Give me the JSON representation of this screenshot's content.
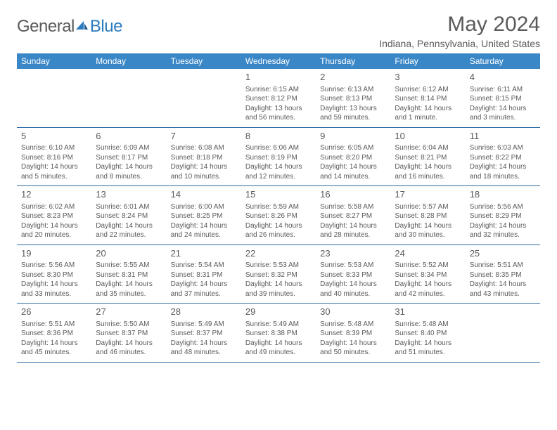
{
  "brand": {
    "general": "General",
    "blue": "Blue"
  },
  "title": "May 2024",
  "location": "Indiana, Pennsylvania, United States",
  "colors": {
    "header_bg": "#3a87c8",
    "border": "#2b6ba3",
    "text": "#5a5a5a",
    "brand_blue": "#2b7bbf",
    "background": "#ffffff"
  },
  "dayNames": [
    "Sunday",
    "Monday",
    "Tuesday",
    "Wednesday",
    "Thursday",
    "Friday",
    "Saturday"
  ],
  "weeks": [
    [
      {
        "n": "",
        "sr": "",
        "ss": "",
        "dl": ""
      },
      {
        "n": "",
        "sr": "",
        "ss": "",
        "dl": ""
      },
      {
        "n": "",
        "sr": "",
        "ss": "",
        "dl": ""
      },
      {
        "n": "1",
        "sr": "Sunrise: 6:15 AM",
        "ss": "Sunset: 8:12 PM",
        "dl": "Daylight: 13 hours and 56 minutes."
      },
      {
        "n": "2",
        "sr": "Sunrise: 6:13 AM",
        "ss": "Sunset: 8:13 PM",
        "dl": "Daylight: 13 hours and 59 minutes."
      },
      {
        "n": "3",
        "sr": "Sunrise: 6:12 AM",
        "ss": "Sunset: 8:14 PM",
        "dl": "Daylight: 14 hours and 1 minute."
      },
      {
        "n": "4",
        "sr": "Sunrise: 6:11 AM",
        "ss": "Sunset: 8:15 PM",
        "dl": "Daylight: 14 hours and 3 minutes."
      }
    ],
    [
      {
        "n": "5",
        "sr": "Sunrise: 6:10 AM",
        "ss": "Sunset: 8:16 PM",
        "dl": "Daylight: 14 hours and 5 minutes."
      },
      {
        "n": "6",
        "sr": "Sunrise: 6:09 AM",
        "ss": "Sunset: 8:17 PM",
        "dl": "Daylight: 14 hours and 8 minutes."
      },
      {
        "n": "7",
        "sr": "Sunrise: 6:08 AM",
        "ss": "Sunset: 8:18 PM",
        "dl": "Daylight: 14 hours and 10 minutes."
      },
      {
        "n": "8",
        "sr": "Sunrise: 6:06 AM",
        "ss": "Sunset: 8:19 PM",
        "dl": "Daylight: 14 hours and 12 minutes."
      },
      {
        "n": "9",
        "sr": "Sunrise: 6:05 AM",
        "ss": "Sunset: 8:20 PM",
        "dl": "Daylight: 14 hours and 14 minutes."
      },
      {
        "n": "10",
        "sr": "Sunrise: 6:04 AM",
        "ss": "Sunset: 8:21 PM",
        "dl": "Daylight: 14 hours and 16 minutes."
      },
      {
        "n": "11",
        "sr": "Sunrise: 6:03 AM",
        "ss": "Sunset: 8:22 PM",
        "dl": "Daylight: 14 hours and 18 minutes."
      }
    ],
    [
      {
        "n": "12",
        "sr": "Sunrise: 6:02 AM",
        "ss": "Sunset: 8:23 PM",
        "dl": "Daylight: 14 hours and 20 minutes."
      },
      {
        "n": "13",
        "sr": "Sunrise: 6:01 AM",
        "ss": "Sunset: 8:24 PM",
        "dl": "Daylight: 14 hours and 22 minutes."
      },
      {
        "n": "14",
        "sr": "Sunrise: 6:00 AM",
        "ss": "Sunset: 8:25 PM",
        "dl": "Daylight: 14 hours and 24 minutes."
      },
      {
        "n": "15",
        "sr": "Sunrise: 5:59 AM",
        "ss": "Sunset: 8:26 PM",
        "dl": "Daylight: 14 hours and 26 minutes."
      },
      {
        "n": "16",
        "sr": "Sunrise: 5:58 AM",
        "ss": "Sunset: 8:27 PM",
        "dl": "Daylight: 14 hours and 28 minutes."
      },
      {
        "n": "17",
        "sr": "Sunrise: 5:57 AM",
        "ss": "Sunset: 8:28 PM",
        "dl": "Daylight: 14 hours and 30 minutes."
      },
      {
        "n": "18",
        "sr": "Sunrise: 5:56 AM",
        "ss": "Sunset: 8:29 PM",
        "dl": "Daylight: 14 hours and 32 minutes."
      }
    ],
    [
      {
        "n": "19",
        "sr": "Sunrise: 5:56 AM",
        "ss": "Sunset: 8:30 PM",
        "dl": "Daylight: 14 hours and 33 minutes."
      },
      {
        "n": "20",
        "sr": "Sunrise: 5:55 AM",
        "ss": "Sunset: 8:31 PM",
        "dl": "Daylight: 14 hours and 35 minutes."
      },
      {
        "n": "21",
        "sr": "Sunrise: 5:54 AM",
        "ss": "Sunset: 8:31 PM",
        "dl": "Daylight: 14 hours and 37 minutes."
      },
      {
        "n": "22",
        "sr": "Sunrise: 5:53 AM",
        "ss": "Sunset: 8:32 PM",
        "dl": "Daylight: 14 hours and 39 minutes."
      },
      {
        "n": "23",
        "sr": "Sunrise: 5:53 AM",
        "ss": "Sunset: 8:33 PM",
        "dl": "Daylight: 14 hours and 40 minutes."
      },
      {
        "n": "24",
        "sr": "Sunrise: 5:52 AM",
        "ss": "Sunset: 8:34 PM",
        "dl": "Daylight: 14 hours and 42 minutes."
      },
      {
        "n": "25",
        "sr": "Sunrise: 5:51 AM",
        "ss": "Sunset: 8:35 PM",
        "dl": "Daylight: 14 hours and 43 minutes."
      }
    ],
    [
      {
        "n": "26",
        "sr": "Sunrise: 5:51 AM",
        "ss": "Sunset: 8:36 PM",
        "dl": "Daylight: 14 hours and 45 minutes."
      },
      {
        "n": "27",
        "sr": "Sunrise: 5:50 AM",
        "ss": "Sunset: 8:37 PM",
        "dl": "Daylight: 14 hours and 46 minutes."
      },
      {
        "n": "28",
        "sr": "Sunrise: 5:49 AM",
        "ss": "Sunset: 8:37 PM",
        "dl": "Daylight: 14 hours and 48 minutes."
      },
      {
        "n": "29",
        "sr": "Sunrise: 5:49 AM",
        "ss": "Sunset: 8:38 PM",
        "dl": "Daylight: 14 hours and 49 minutes."
      },
      {
        "n": "30",
        "sr": "Sunrise: 5:48 AM",
        "ss": "Sunset: 8:39 PM",
        "dl": "Daylight: 14 hours and 50 minutes."
      },
      {
        "n": "31",
        "sr": "Sunrise: 5:48 AM",
        "ss": "Sunset: 8:40 PM",
        "dl": "Daylight: 14 hours and 51 minutes."
      },
      {
        "n": "",
        "sr": "",
        "ss": "",
        "dl": ""
      }
    ]
  ]
}
